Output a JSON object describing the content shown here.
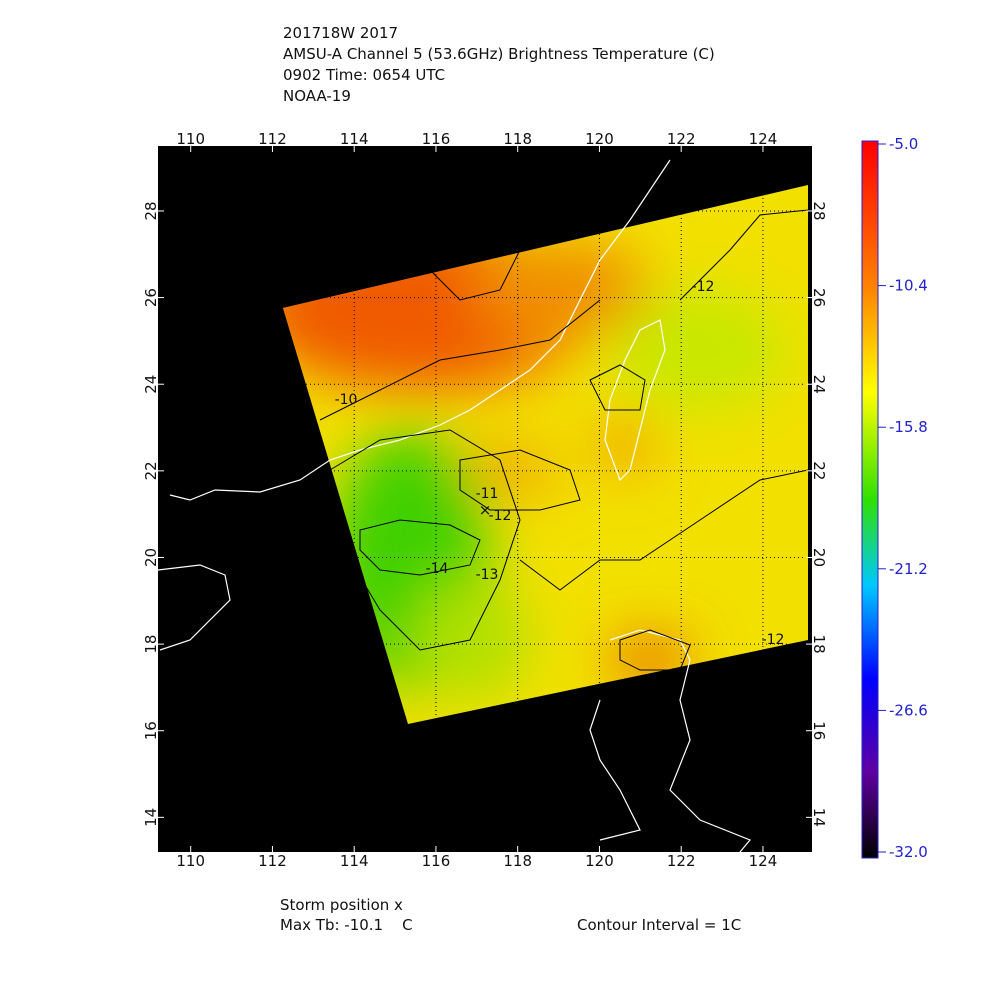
{
  "header": {
    "lines": [
      "201718W 2017",
      "AMSU-A Channel 5 (53.6GHz) Brightness Temperature (C)",
      "0902 Time: 0654 UTC",
      "NOAA-19"
    ]
  },
  "map": {
    "lonlim": [
      109.2,
      125.2
    ],
    "latlim": [
      13.2,
      29.5
    ],
    "lonticks": [
      110,
      112,
      114,
      116,
      118,
      120,
      122,
      124
    ],
    "latticks": [
      14,
      16,
      18,
      20,
      22,
      24,
      26,
      28
    ],
    "contour_labels": [
      -10,
      -11,
      -12,
      -13,
      -14,
      -12,
      -12
    ]
  },
  "colorbar": {
    "lim": [
      -32,
      -5
    ],
    "ticks": [
      {
        "value": -5,
        "label": "-5.0"
      },
      -10.4,
      -15.8,
      -21.2,
      -26.6,
      {
        "value": -32,
        "label": "-32.0"
      }
    ]
  },
  "footer": {
    "storm": "Storm position x",
    "maxtb": "Max Tb: -10.1    C",
    "interval": "Contour Interval = 1C"
  }
}
